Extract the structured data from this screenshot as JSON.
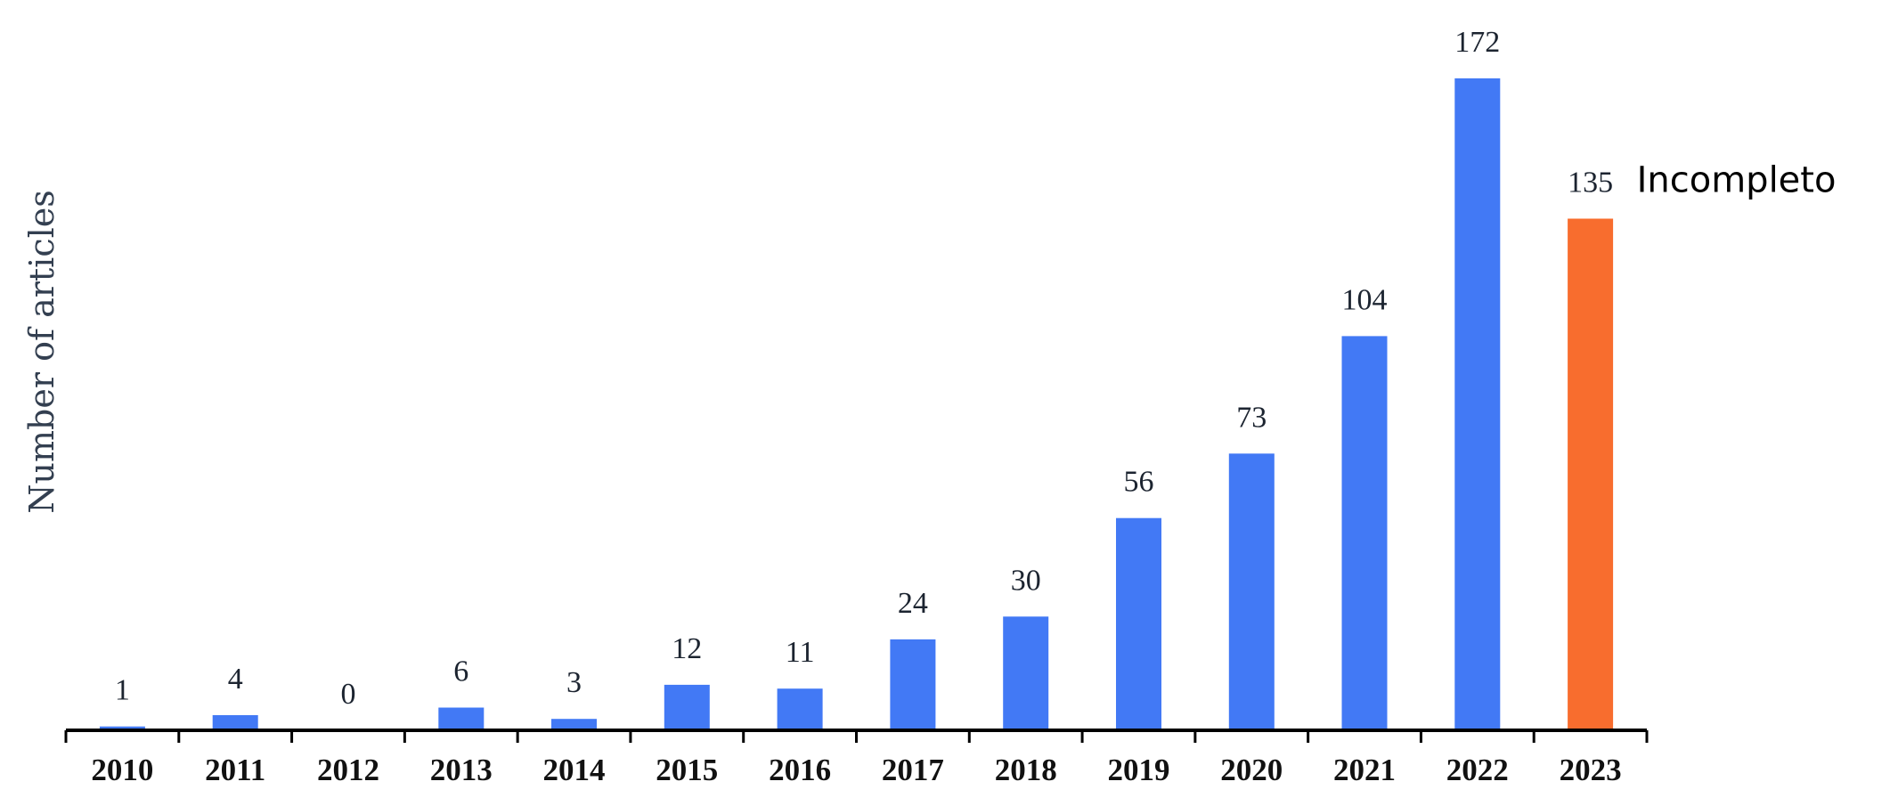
{
  "chart_data": {
    "type": "bar",
    "title": "",
    "xlabel": "",
    "ylabel": "Number of articles",
    "categories": [
      "2010",
      "2011",
      "2012",
      "2013",
      "2014",
      "2015",
      "2016",
      "2017",
      "2018",
      "2019",
      "2020",
      "2021",
      "2022",
      "2023"
    ],
    "values": [
      1,
      4,
      0,
      6,
      3,
      12,
      11,
      24,
      30,
      56,
      73,
      104,
      172,
      135
    ],
    "ylim": [
      0,
      172
    ],
    "grid": false,
    "legend": "none",
    "colors": {
      "default_bar": "#4279f5",
      "highlight_bar": "#f86d2e",
      "axis": "#000000"
    },
    "highlight": {
      "category": "2023",
      "annotation": "Incompleto"
    }
  }
}
